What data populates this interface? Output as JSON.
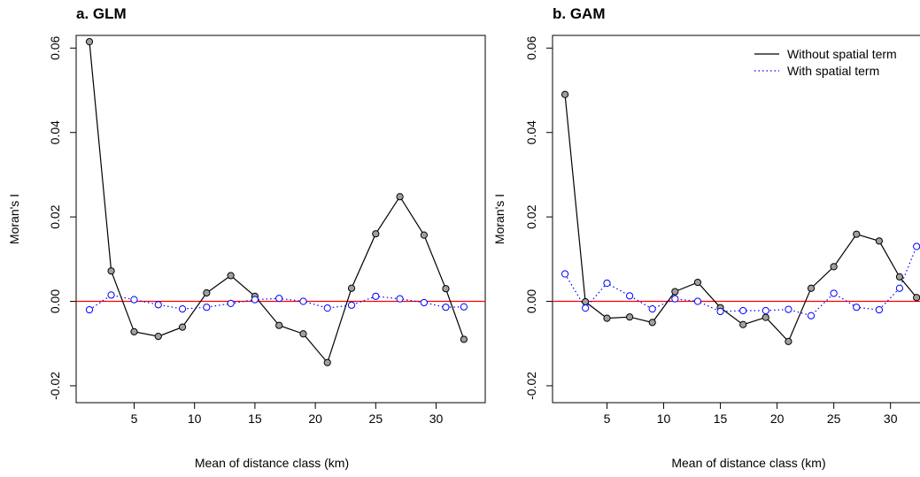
{
  "chart_data": [
    {
      "type": "line",
      "title": "a. GLM",
      "xlabel": "Mean of distance class (km)",
      "ylabel": "Moran's I",
      "xlim": [
        0.2,
        32.6
      ],
      "ylim": [
        -0.024,
        0.063
      ],
      "xticks": [
        5,
        10,
        15,
        20,
        25,
        30
      ],
      "yticks": [
        -0.02,
        0.0,
        0.02,
        0.04,
        0.06
      ],
      "ytick_labels": [
        "-0.02",
        "0.00",
        "0.02",
        "0.04",
        "0.06"
      ],
      "reference_line": {
        "y": 0,
        "color": "#ff0000"
      },
      "legend": null,
      "series": [
        {
          "name": "Without spatial term",
          "style": "solid",
          "color": "#000000",
          "marker_fill": "#a0a0a0",
          "x": [
            1.3,
            3.1,
            5.0,
            7.0,
            9.0,
            11.0,
            13.0,
            15.0,
            17.0,
            19.0,
            21.0,
            23.0,
            25.0,
            27.0,
            29.0,
            30.8,
            32.3
          ],
          "values": [
            0.0615,
            0.0072,
            -0.0072,
            -0.0083,
            -0.0061,
            0.002,
            0.0061,
            0.0012,
            -0.0057,
            -0.0077,
            -0.0145,
            0.0031,
            0.016,
            0.0248,
            0.0157,
            0.003,
            -0.009
          ]
        },
        {
          "name": "With spatial term",
          "style": "dotted",
          "color": "#0000ff",
          "marker_fill": "#ffffff",
          "x": [
            1.3,
            3.1,
            5.0,
            7.0,
            9.0,
            11.0,
            13.0,
            15.0,
            17.0,
            19.0,
            21.0,
            23.0,
            25.0,
            27.0,
            29.0,
            30.8,
            32.3
          ],
          "values": [
            -0.002,
            0.0015,
            0.0004,
            -0.0008,
            -0.0018,
            -0.0014,
            -0.0005,
            0.0004,
            0.0007,
            0.0,
            -0.0016,
            -0.0009,
            0.0012,
            0.0006,
            -0.0003,
            -0.0014,
            -0.0013
          ]
        }
      ]
    },
    {
      "type": "line",
      "title": "b. GAM",
      "xlabel": "Mean of distance class (km)",
      "ylabel": "Moran's I",
      "xlim": [
        0.2,
        32.6
      ],
      "ylim": [
        -0.024,
        0.063
      ],
      "xticks": [
        5,
        10,
        15,
        20,
        25,
        30
      ],
      "yticks": [
        -0.02,
        0.0,
        0.02,
        0.04,
        0.06
      ],
      "ytick_labels": [
        "-0.02",
        "0.00",
        "0.02",
        "0.04",
        "0.06"
      ],
      "reference_line": {
        "y": 0,
        "color": "#ff0000"
      },
      "legend": {
        "position": "top-right",
        "entries": [
          "Without spatial term",
          "With spatial term"
        ]
      },
      "series": [
        {
          "name": "Without spatial term",
          "style": "solid",
          "color": "#000000",
          "marker_fill": "#a0a0a0",
          "x": [
            1.3,
            3.1,
            5.0,
            7.0,
            9.0,
            11.0,
            13.0,
            15.0,
            17.0,
            19.0,
            21.0,
            23.0,
            25.0,
            27.0,
            29.0,
            30.8,
            32.3
          ],
          "values": [
            0.049,
            -0.0001,
            -0.004,
            -0.0037,
            -0.005,
            0.0023,
            0.0045,
            -0.0015,
            -0.0055,
            -0.0038,
            -0.0095,
            0.0031,
            0.0082,
            0.0159,
            0.0143,
            0.0058,
            0.0009
          ]
        },
        {
          "name": "With spatial term",
          "style": "dotted",
          "color": "#0000ff",
          "marker_fill": "#ffffff",
          "x": [
            1.3,
            3.1,
            5.0,
            7.0,
            9.0,
            11.0,
            13.0,
            15.0,
            17.0,
            19.0,
            21.0,
            23.0,
            25.0,
            27.0,
            29.0,
            30.8,
            32.3
          ],
          "values": [
            0.0065,
            -0.0016,
            0.0043,
            0.0013,
            -0.0018,
            0.0006,
            0.0,
            -0.0024,
            -0.0022,
            -0.0022,
            -0.0019,
            -0.0034,
            0.0019,
            -0.0014,
            -0.002,
            0.0031,
            0.013
          ]
        }
      ]
    }
  ]
}
